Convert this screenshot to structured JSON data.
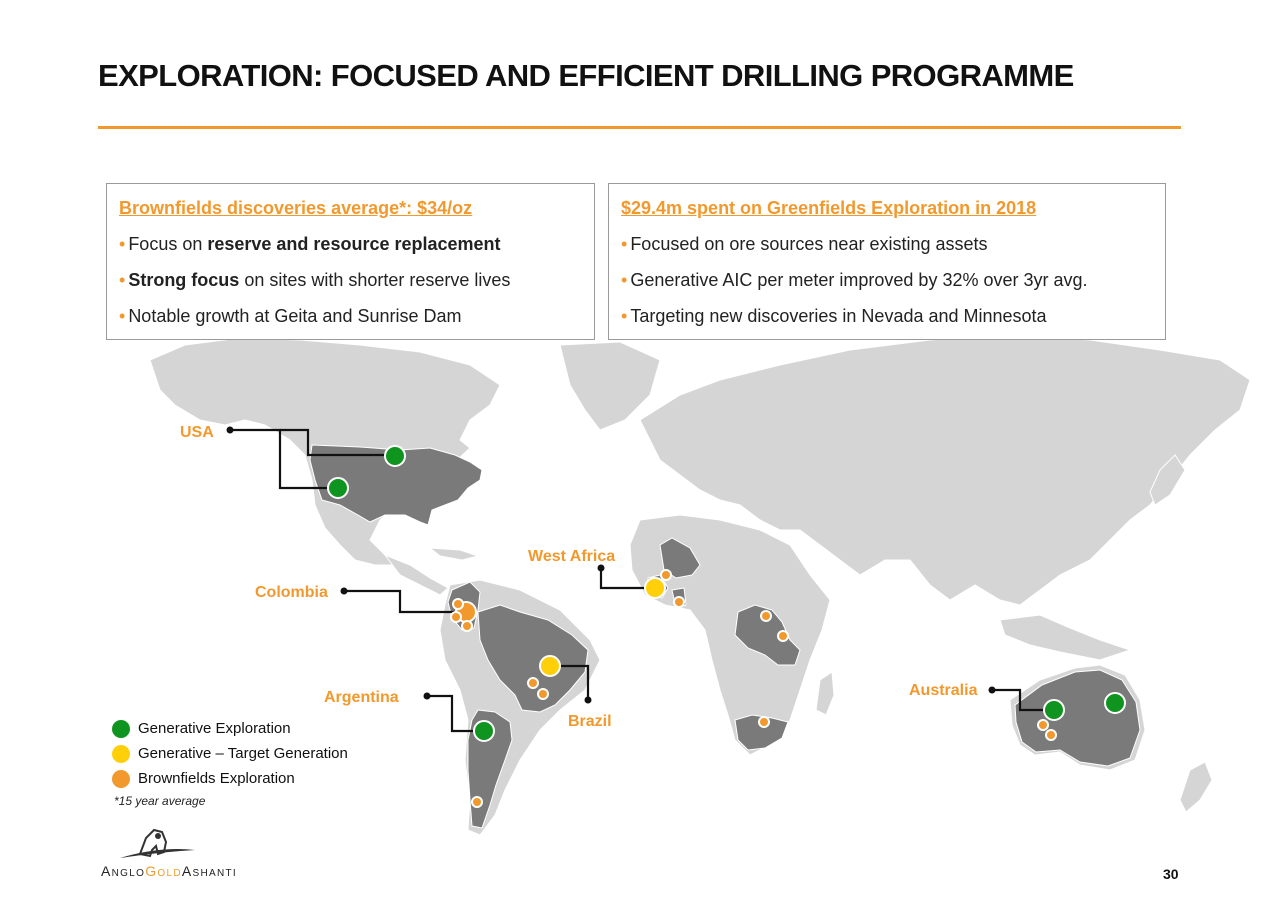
{
  "title": "EXPLORATION: FOCUSED AND EFFICIENT DRILLING PROGRAMME",
  "colors": {
    "accent": "#f2992e",
    "generative_exploration": "#109420",
    "generative_target_generation": "#ffcf0a",
    "brownfields_exploration": "#f2992e",
    "land": "#d5d5d5",
    "operating_country": "#7a7a7a"
  },
  "left_box": {
    "heading": "Brownfields discoveries average*: $34/oz",
    "bullets": [
      {
        "prefix": "Focus on ",
        "bold": "reserve and resource replacement",
        "suffix": ""
      },
      {
        "prefix": "",
        "bold": "Strong focus",
        "suffix": " on sites with shorter reserve lives"
      },
      {
        "prefix": "Notable growth at Geita and Sunrise Dam",
        "bold": "",
        "suffix": ""
      }
    ]
  },
  "right_box": {
    "heading": "$29.4m spent on Greenfields Exploration in 2018",
    "bullets": [
      "Focused on ore sources near existing assets",
      "Generative AIC per meter improved by 32% over 3yr avg.",
      "Targeting new discoveries in Nevada and Minnesota"
    ]
  },
  "bullet_char": "•",
  "map_labels": {
    "usa": "USA",
    "west_africa": "West Africa",
    "colombia": "Colombia",
    "argentina": "Argentina",
    "brazil": "Brazil",
    "australia": "Australia"
  },
  "markers": [
    {
      "region": "USA",
      "type": "generative_exploration",
      "size": "large"
    },
    {
      "region": "USA",
      "type": "generative_exploration",
      "size": "large"
    },
    {
      "region": "Colombia",
      "type": "brownfields_exploration",
      "size": "large"
    },
    {
      "region": "Colombia",
      "type": "brownfields_exploration",
      "size": "small"
    },
    {
      "region": "Colombia",
      "type": "brownfields_exploration",
      "size": "small"
    },
    {
      "region": "Colombia",
      "type": "brownfields_exploration",
      "size": "small"
    },
    {
      "region": "Brazil",
      "type": "generative_target_generation",
      "size": "large"
    },
    {
      "region": "Brazil",
      "type": "brownfields_exploration",
      "size": "small"
    },
    {
      "region": "Brazil",
      "type": "brownfields_exploration",
      "size": "small"
    },
    {
      "region": "Argentina",
      "type": "generative_exploration",
      "size": "large"
    },
    {
      "region": "Argentina",
      "type": "brownfields_exploration",
      "size": "small"
    },
    {
      "region": "West Africa",
      "type": "generative_target_generation",
      "size": "large"
    },
    {
      "region": "West Africa",
      "type": "brownfields_exploration",
      "size": "small"
    },
    {
      "region": "West Africa",
      "type": "brownfields_exploration",
      "size": "small"
    },
    {
      "region": "East Africa",
      "type": "brownfields_exploration",
      "size": "small"
    },
    {
      "region": "East Africa",
      "type": "brownfields_exploration",
      "size": "small"
    },
    {
      "region": "South Africa",
      "type": "brownfields_exploration",
      "size": "small"
    },
    {
      "region": "Australia",
      "type": "generative_exploration",
      "size": "large"
    },
    {
      "region": "Australia",
      "type": "generative_exploration",
      "size": "large"
    },
    {
      "region": "Australia",
      "type": "brownfields_exploration",
      "size": "small"
    },
    {
      "region": "Australia",
      "type": "brownfields_exploration",
      "size": "small"
    }
  ],
  "legend": [
    {
      "label": "Generative Exploration",
      "color": "#109420"
    },
    {
      "label": "Generative – Target Generation",
      "color": "#ffcf0a"
    },
    {
      "label": "Brownfields Exploration",
      "color": "#f2992e"
    }
  ],
  "footnote": "*15 year average",
  "logo": {
    "part1": "Anglo",
    "part2": "Gold",
    "part3": "Ashanti"
  },
  "page_number": "30"
}
